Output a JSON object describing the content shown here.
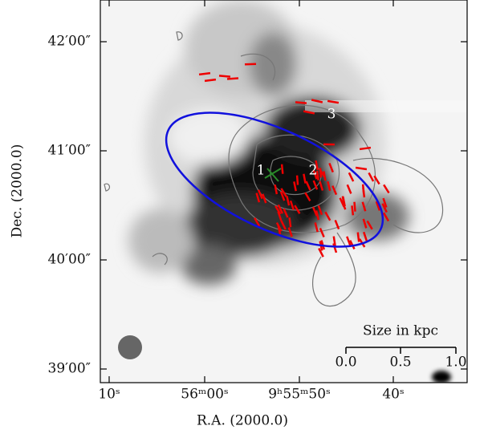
{
  "figure": {
    "x_axis": {
      "label": "R.A. (2000.0)",
      "ticks": [
        "10ˢ",
        "56ᵐ00ˢ",
        "9ʰ55ᵐ50ˢ",
        "40ˢ"
      ]
    },
    "y_axis": {
      "label": "Dec. (2000.0)",
      "ticks": [
        "42′00″",
        "41′00″",
        "40′00″",
        "39′00″"
      ]
    },
    "scale_bar": {
      "title": "Size in kpc",
      "ticks": [
        "0.0",
        "0.5",
        "1.0"
      ]
    },
    "annotations": [
      "1",
      "2",
      "3"
    ]
  }
}
